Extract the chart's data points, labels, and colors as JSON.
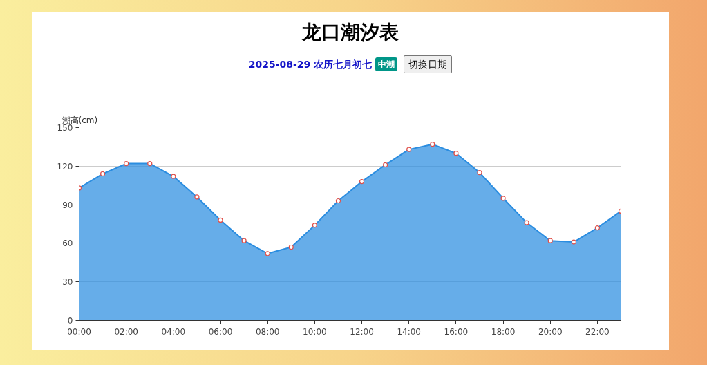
{
  "chart_data": {
    "type": "area",
    "title": "龙口潮汐表",
    "subtitle": "2025-08-29 农历七月初七",
    "annotations": [
      "中潮",
      "切换日期"
    ],
    "ylabel": "潮高(cm)",
    "x": [
      0,
      1,
      2,
      3,
      4,
      5,
      6,
      7,
      8,
      9,
      10,
      11,
      12,
      13,
      14,
      15,
      16,
      17,
      18,
      19,
      20,
      21,
      22,
      23
    ],
    "series": [
      {
        "color": "#2b8de0",
        "values": [
          103,
          114,
          122,
          122,
          112,
          96,
          78,
          62,
          52,
          57,
          74,
          93,
          108,
          121,
          133,
          137,
          130,
          115,
          95,
          76,
          62,
          61,
          72,
          85
        ]
      }
    ],
    "xlim": [
      0,
      23
    ],
    "xticks": [
      {
        "value": 0,
        "label": "00:00"
      },
      {
        "value": 2,
        "label": "02:00"
      },
      {
        "value": 4,
        "label": "04:00"
      },
      {
        "value": 6,
        "label": "06:00"
      },
      {
        "value": 8,
        "label": "08:00"
      },
      {
        "value": 10,
        "label": "10:00"
      },
      {
        "value": 12,
        "label": "12:00"
      },
      {
        "value": 14,
        "label": "14:00"
      },
      {
        "value": 16,
        "label": "16:00"
      },
      {
        "value": 18,
        "label": "18:00"
      },
      {
        "value": 20,
        "label": "20:00"
      },
      {
        "value": 22,
        "label": "22:00"
      }
    ],
    "ylim": [
      0,
      150
    ],
    "yticks": [
      0,
      30,
      60,
      90,
      120,
      150
    ],
    "grid": "y",
    "marker": "circle",
    "line_style": "solid"
  }
}
